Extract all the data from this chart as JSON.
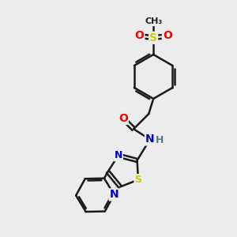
{
  "bg_color": "#ececec",
  "bond_color": "#1a1a1a",
  "bond_width": 1.8,
  "atom_colors": {
    "O": "#ff0000",
    "S": "#cccc00",
    "N": "#0000cc",
    "H": "#557788",
    "C": "#1a1a1a"
  },
  "font_size": 9,
  "fig_size": [
    3.0,
    3.0
  ],
  "dpi": 100,
  "xlim": [
    0,
    10
  ],
  "ylim": [
    0,
    10
  ]
}
